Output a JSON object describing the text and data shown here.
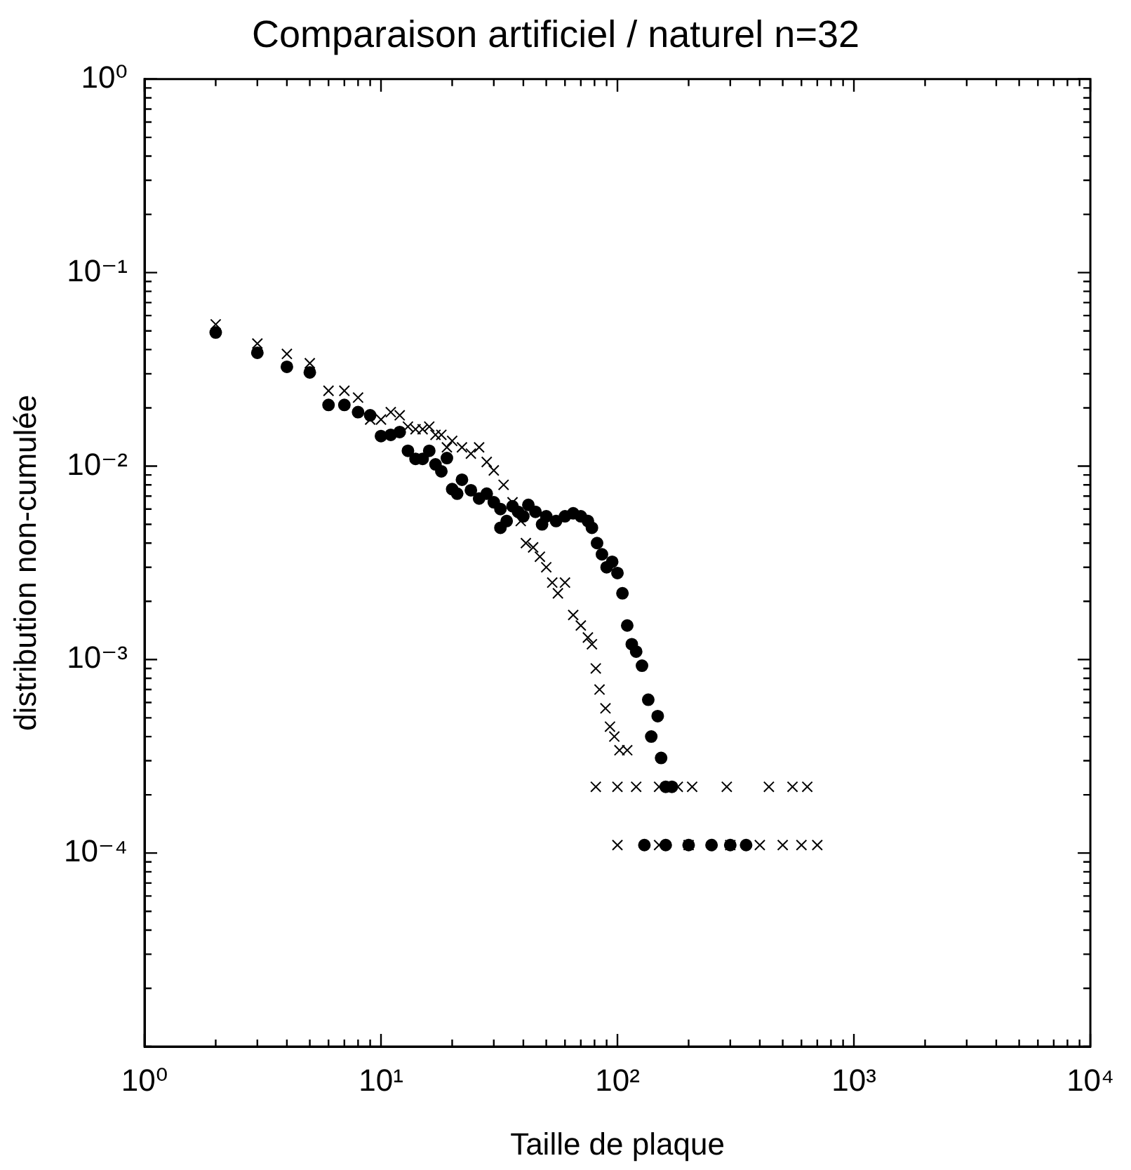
{
  "chart_data": {
    "type": "scatter",
    "title": "Comparaison artificiel / naturel n=32",
    "xlabel": "Taille de plaque",
    "ylabel": "distribution non-cumulée",
    "log": "xy",
    "grid": false,
    "legend": false,
    "xlim": [
      1,
      10000
    ],
    "ylim": [
      1e-05,
      1
    ],
    "xticks": [
      {
        "value": 1,
        "label": "10⁰"
      },
      {
        "value": 2,
        "label": null
      },
      {
        "value": 3,
        "label": null
      },
      {
        "value": 4,
        "label": null
      },
      {
        "value": 5,
        "label": null
      },
      {
        "value": 6,
        "label": null
      },
      {
        "value": 7,
        "label": null
      },
      {
        "value": 8,
        "label": null
      },
      {
        "value": 9,
        "label": null
      },
      {
        "value": 10,
        "label": "10¹"
      },
      {
        "value": 20,
        "label": null
      },
      {
        "value": 30,
        "label": null
      },
      {
        "value": 40,
        "label": null
      },
      {
        "value": 50,
        "label": null
      },
      {
        "value": 60,
        "label": null
      },
      {
        "value": 70,
        "label": null
      },
      {
        "value": 80,
        "label": null
      },
      {
        "value": 90,
        "label": null
      },
      {
        "value": 100,
        "label": "10²"
      },
      {
        "value": 200,
        "label": null
      },
      {
        "value": 300,
        "label": null
      },
      {
        "value": 400,
        "label": null
      },
      {
        "value": 500,
        "label": null
      },
      {
        "value": 600,
        "label": null
      },
      {
        "value": 700,
        "label": null
      },
      {
        "value": 800,
        "label": null
      },
      {
        "value": 900,
        "label": null
      },
      {
        "value": 1000,
        "label": "10³"
      },
      {
        "value": 2000,
        "label": null
      },
      {
        "value": 3000,
        "label": null
      },
      {
        "value": 4000,
        "label": null
      },
      {
        "value": 5000,
        "label": null
      },
      {
        "value": 6000,
        "label": null
      },
      {
        "value": 7000,
        "label": null
      },
      {
        "value": 8000,
        "label": null
      },
      {
        "value": 9000,
        "label": null
      },
      {
        "value": 10000,
        "label": "10⁴"
      }
    ],
    "yticks": [
      {
        "value": 1e-05,
        "label": null
      },
      {
        "value": 2e-05,
        "label": null
      },
      {
        "value": 3e-05,
        "label": null
      },
      {
        "value": 4e-05,
        "label": null
      },
      {
        "value": 5e-05,
        "label": null
      },
      {
        "value": 6e-05,
        "label": null
      },
      {
        "value": 7e-05,
        "label": null
      },
      {
        "value": 8e-05,
        "label": null
      },
      {
        "value": 9e-05,
        "label": null
      },
      {
        "value": 0.0001,
        "label": "10⁻⁴"
      },
      {
        "value": 0.0002,
        "label": null
      },
      {
        "value": 0.0003,
        "label": null
      },
      {
        "value": 0.0004,
        "label": null
      },
      {
        "value": 0.0005,
        "label": null
      },
      {
        "value": 0.0006,
        "label": null
      },
      {
        "value": 0.0007,
        "label": null
      },
      {
        "value": 0.0008,
        "label": null
      },
      {
        "value": 0.0009,
        "label": null
      },
      {
        "value": 0.001,
        "label": "10⁻³"
      },
      {
        "value": 0.002,
        "label": null
      },
      {
        "value": 0.003,
        "label": null
      },
      {
        "value": 0.004,
        "label": null
      },
      {
        "value": 0.005,
        "label": null
      },
      {
        "value": 0.006,
        "label": null
      },
      {
        "value": 0.007,
        "label": null
      },
      {
        "value": 0.008,
        "label": null
      },
      {
        "value": 0.009,
        "label": null
      },
      {
        "value": 0.01,
        "label": "10⁻²"
      },
      {
        "value": 0.02,
        "label": null
      },
      {
        "value": 0.03,
        "label": null
      },
      {
        "value": 0.04,
        "label": null
      },
      {
        "value": 0.05,
        "label": null
      },
      {
        "value": 0.06,
        "label": null
      },
      {
        "value": 0.07,
        "label": null
      },
      {
        "value": 0.08,
        "label": null
      },
      {
        "value": 0.09,
        "label": null
      },
      {
        "value": 0.1,
        "label": "10⁻¹"
      },
      {
        "value": 0.2,
        "label": null
      },
      {
        "value": 0.3,
        "label": null
      },
      {
        "value": 0.4,
        "label": null
      },
      {
        "value": 0.5,
        "label": null
      },
      {
        "value": 0.6,
        "label": null
      },
      {
        "value": 0.7,
        "label": null
      },
      {
        "value": 0.8,
        "label": null
      },
      {
        "value": 0.9,
        "label": null
      },
      {
        "value": 1,
        "label": "10⁰"
      }
    ],
    "series": [
      {
        "color": "#000000",
        "marker": "cross",
        "x": [
          2,
          3,
          4,
          5,
          6,
          7,
          8,
          9,
          10,
          11,
          12,
          13,
          14,
          15,
          16,
          17,
          18,
          19,
          20,
          22,
          24,
          26,
          28,
          30,
          33,
          36,
          39,
          41,
          44,
          47,
          50,
          53,
          56,
          60,
          65,
          70,
          75,
          78,
          81,
          84,
          89,
          93,
          97,
          102,
          110,
          81,
          100,
          120,
          150,
          180,
          207,
          290,
          437,
          550,
          635,
          100,
          150,
          200,
          300,
          400,
          500,
          600,
          700
        ],
        "values": [
          0.054,
          0.043,
          0.038,
          0.034,
          0.0245,
          0.0245,
          0.0226,
          0.0174,
          0.0174,
          0.019,
          0.0183,
          0.016,
          0.0155,
          0.0155,
          0.016,
          0.0145,
          0.0145,
          0.0125,
          0.0135,
          0.0125,
          0.0116,
          0.0125,
          0.0105,
          0.0095,
          0.008,
          0.0065,
          0.0052,
          0.004,
          0.0038,
          0.0034,
          0.003,
          0.0025,
          0.0022,
          0.0025,
          0.0017,
          0.0015,
          0.0013,
          0.0012,
          0.0009,
          0.0007,
          0.00056,
          0.00045,
          0.0004,
          0.00034,
          0.00034,
          0.00022,
          0.00022,
          0.00022,
          0.00022,
          0.00022,
          0.00022,
          0.00022,
          0.00022,
          0.00022,
          0.00022,
          0.00011,
          0.00011,
          0.00011,
          0.00011,
          0.00011,
          0.00011,
          0.00011,
          0.00011
        ]
      },
      {
        "color": "#000000",
        "marker": "circle",
        "x": [
          2,
          3,
          4,
          5,
          6,
          7,
          8,
          9,
          10,
          11,
          12,
          13,
          14,
          15,
          16,
          17,
          18,
          19,
          20,
          21,
          22,
          24,
          26,
          28,
          30,
          32,
          32,
          34,
          36,
          38,
          40,
          42,
          45,
          48,
          50,
          55,
          60,
          65,
          70,
          75,
          78,
          82,
          86,
          90,
          95,
          100,
          105,
          110,
          115,
          120,
          127,
          135,
          139,
          148,
          153,
          160,
          170,
          130,
          160,
          200,
          250,
          300,
          350
        ],
        "values": [
          0.049,
          0.0385,
          0.0326,
          0.0305,
          0.0207,
          0.0207,
          0.019,
          0.0183,
          0.0143,
          0.0145,
          0.015,
          0.012,
          0.0109,
          0.0109,
          0.012,
          0.0102,
          0.0094,
          0.011,
          0.0076,
          0.0072,
          0.0085,
          0.0075,
          0.0068,
          0.0072,
          0.0065,
          0.006,
          0.0048,
          0.0052,
          0.0062,
          0.0058,
          0.0055,
          0.0063,
          0.0058,
          0.005,
          0.0055,
          0.0052,
          0.0055,
          0.0057,
          0.0055,
          0.0052,
          0.0048,
          0.004,
          0.0035,
          0.003,
          0.0032,
          0.0028,
          0.0022,
          0.0015,
          0.0012,
          0.0011,
          0.00093,
          0.00062,
          0.0004,
          0.00051,
          0.00031,
          0.00022,
          0.00022,
          0.00011,
          0.00011,
          0.00011,
          0.00011,
          0.00011,
          0.00011
        ]
      }
    ]
  }
}
